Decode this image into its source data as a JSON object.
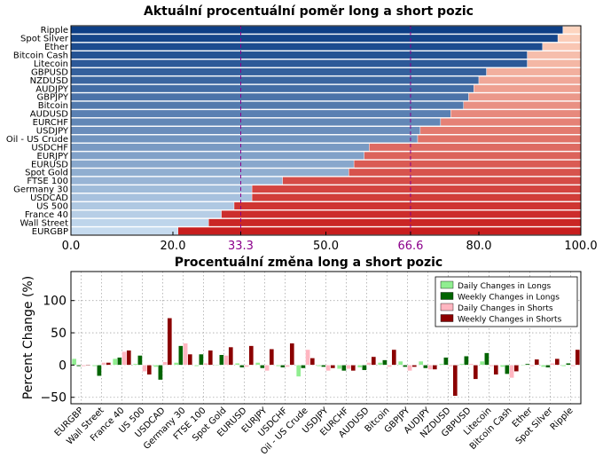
{
  "chart_data": [
    {
      "type": "bar",
      "orientation": "horizontal-stacked",
      "title": "Aktuální procentuální poměr long a short pozic",
      "categories": [
        "Ripple",
        "Spot Silver",
        "Ether",
        "Bitcoin Cash",
        "Litecoin",
        "GBPUSD",
        "NZDUSD",
        "AUDJPY",
        "GBPJPY",
        "Bitcoin",
        "AUDUSD",
        "EURCHF",
        "USDJPY",
        "Oil - US Crude",
        "USDCHF",
        "EURJPY",
        "EURUSD",
        "Spot Gold",
        "FTSE 100",
        "Germany 30",
        "USDCAD",
        "US 500",
        "France 40",
        "Wall Street",
        "EURGBP"
      ],
      "series": [
        {
          "values": [
            96.5,
            95.5,
            92.5,
            89.5,
            89.5,
            81.5,
            80,
            79,
            78,
            77,
            74.5,
            72.5,
            68.5,
            68,
            58.5,
            57.5,
            55.5,
            54.5,
            41.5,
            35.5,
            35.5,
            32,
            29.5,
            27,
            21
          ]
        }
      ],
      "xlim": [
        0,
        100
      ],
      "xticks": [
        "0.0",
        "20.0",
        "33.3",
        "50.0",
        "66.6",
        "80.0",
        "100.0"
      ],
      "xtick_values": [
        0,
        20,
        33.3,
        50,
        66.6,
        80,
        100
      ],
      "reference_lines": [
        33.3,
        66.6
      ],
      "colors": {
        "long_dark": "#0d3f86",
        "long_light": "#c6dbef",
        "short_light": "#fdd5c0",
        "short_dark": "#c81e1e",
        "ref_line": "#8b008b"
      }
    },
    {
      "type": "bar",
      "title": "Procentuální změna long a short pozic",
      "ylabel": "Percent Change (%)",
      "ylim": [
        -60,
        145
      ],
      "yticks": [
        "−50",
        "0",
        "50",
        "100"
      ],
      "ytick_values": [
        -50,
        0,
        50,
        100
      ],
      "grid": true,
      "legend_position": "top-right",
      "categories": [
        "EURGBP",
        "Wall Street",
        "France 40",
        "US 500",
        "USDCAD",
        "Germany 30",
        "FTSE 100",
        "Spot Gold",
        "EURUSD",
        "EURJPY",
        "USDCHF",
        "Oil - US Crude",
        "USDJPY",
        "EURCHF",
        "AUDUSD",
        "Bitcoin",
        "GBPJPY",
        "AUDJPY",
        "NZDUSD",
        "GBPUSD",
        "Litecoin",
        "Bitcoin Cash",
        "Ether",
        "Spot Silver",
        "Ripple"
      ],
      "series": [
        {
          "name": "Daily Changes in Longs",
          "color": "#90ee90",
          "values": [
            10,
            -2,
            10,
            2,
            -3,
            4,
            -2,
            -1,
            3,
            4,
            -2,
            -18,
            -2,
            -6,
            -4,
            4,
            6,
            6,
            2,
            2,
            6,
            -3,
            -1,
            -3,
            -2
          ]
        },
        {
          "name": "Weekly Changes in Longs",
          "color": "#006400",
          "values": [
            -2,
            -17,
            12,
            15,
            -23,
            30,
            17,
            16,
            -4,
            -5,
            -4,
            -5,
            -3,
            -9,
            -8,
            8,
            -3,
            -5,
            12,
            14,
            19,
            -14,
            2,
            -4,
            3
          ]
        },
        {
          "name": "Daily Changes in Shorts",
          "color": "#ffb6c1",
          "values": [
            -2,
            4,
            21,
            -10,
            5,
            34,
            3,
            15,
            -3,
            -9,
            -3,
            24,
            -9,
            -6,
            4,
            -3,
            -9,
            -7,
            -2,
            2,
            -2,
            -20,
            -2,
            3,
            -2
          ]
        },
        {
          "name": "Weekly Changes in Shorts",
          "color": "#8b0000",
          "values": [
            -1,
            4,
            23,
            -15,
            73,
            17,
            23,
            28,
            30,
            25,
            34,
            11,
            -5,
            -9,
            13,
            24,
            -3,
            -7,
            -48,
            -22,
            -15,
            -10,
            9,
            10,
            24
          ]
        }
      ]
    }
  ]
}
